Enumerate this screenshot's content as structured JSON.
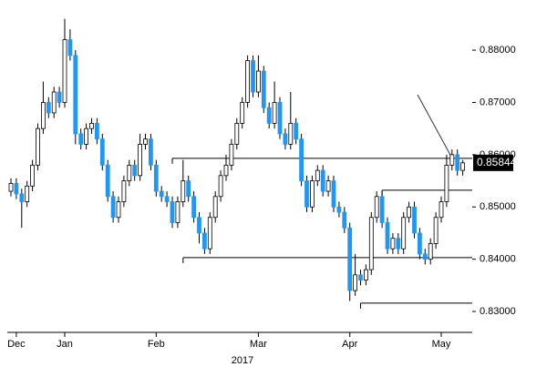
{
  "chart_data": {
    "type": "candlestick",
    "x_label": "2017",
    "categories": [
      null,
      "Dec",
      null,
      null,
      null,
      null,
      null,
      null,
      null,
      null,
      "Jan",
      null,
      null,
      null,
      null,
      null,
      null,
      null,
      null,
      null,
      null,
      null,
      null,
      null,
      null,
      null,
      null,
      "Feb",
      null,
      null,
      null,
      null,
      null,
      null,
      null,
      null,
      null,
      null,
      null,
      null,
      null,
      null,
      null,
      null,
      null,
      null,
      "Mar",
      null,
      null,
      null,
      null,
      null,
      null,
      null,
      null,
      null,
      null,
      null,
      null,
      null,
      null,
      null,
      null,
      "Apr",
      null,
      null,
      null,
      null,
      null,
      null,
      null,
      null,
      null,
      null,
      null,
      null,
      null,
      null,
      null,
      null,
      "May",
      null,
      null,
      null,
      null
    ],
    "open": [
      0.853,
      0.8545,
      0.8525,
      0.851,
      0.854,
      0.858,
      0.865,
      0.87,
      0.868,
      0.872,
      0.87,
      0.882,
      0.879,
      0.864,
      0.862,
      0.865,
      0.866,
      0.863,
      0.858,
      0.852,
      0.848,
      0.851,
      0.855,
      0.858,
      0.856,
      0.862,
      0.863,
      0.858,
      0.853,
      0.852,
      0.851,
      0.847,
      0.851,
      0.855,
      0.852,
      0.848,
      0.845,
      0.842,
      0.848,
      0.852,
      0.856,
      0.858,
      0.862,
      0.866,
      0.87,
      0.878,
      0.872,
      0.876,
      0.869,
      0.866,
      0.87,
      0.864,
      0.862,
      0.866,
      0.863,
      0.855,
      0.85,
      0.855,
      0.857,
      0.853,
      0.855,
      0.85,
      0.849,
      0.846,
      0.834,
      0.837,
      0.836,
      0.838,
      0.848,
      0.852,
      0.847,
      0.842,
      0.844,
      0.842,
      0.848,
      0.85,
      0.845,
      0.841,
      0.84,
      0.843,
      0.848,
      0.851,
      0.858,
      0.86,
      0.857
    ],
    "high": [
      0.8555,
      0.8555,
      0.8535,
      0.855,
      0.859,
      0.866,
      0.874,
      0.871,
      0.873,
      0.873,
      0.886,
      0.884,
      0.88,
      0.865,
      0.866,
      0.867,
      0.867,
      0.864,
      0.859,
      0.853,
      0.852,
      0.856,
      0.859,
      0.859,
      0.864,
      0.864,
      0.864,
      0.859,
      0.854,
      0.853,
      0.852,
      0.852,
      0.859,
      0.856,
      0.853,
      0.849,
      0.846,
      0.849,
      0.853,
      0.857,
      0.86,
      0.863,
      0.867,
      0.871,
      0.879,
      0.879,
      0.879,
      0.877,
      0.87,
      0.874,
      0.871,
      0.865,
      0.872,
      0.867,
      0.864,
      0.856,
      0.856,
      0.858,
      0.858,
      0.856,
      0.856,
      0.851,
      0.85,
      0.847,
      0.841,
      0.838,
      0.839,
      0.849,
      0.853,
      0.853,
      0.848,
      0.845,
      0.845,
      0.849,
      0.851,
      0.851,
      0.846,
      0.842,
      0.844,
      0.849,
      0.852,
      0.86,
      0.861,
      0.861,
      0.859
    ],
    "low": [
      0.852,
      0.8515,
      0.846,
      0.85,
      0.853,
      0.857,
      0.864,
      0.867,
      0.867,
      0.869,
      0.869,
      0.878,
      0.862,
      0.861,
      0.861,
      0.864,
      0.862,
      0.857,
      0.851,
      0.847,
      0.847,
      0.85,
      0.854,
      0.855,
      0.855,
      0.861,
      0.857,
      0.852,
      0.851,
      0.85,
      0.846,
      0.846,
      0.85,
      0.851,
      0.847,
      0.843,
      0.841,
      0.841,
      0.847,
      0.851,
      0.855,
      0.857,
      0.861,
      0.865,
      0.869,
      0.871,
      0.871,
      0.868,
      0.865,
      0.865,
      0.863,
      0.861,
      0.861,
      0.862,
      0.854,
      0.849,
      0.849,
      0.854,
      0.852,
      0.852,
      0.849,
      0.848,
      0.845,
      0.832,
      0.833,
      0.835,
      0.835,
      0.837,
      0.847,
      0.846,
      0.841,
      0.841,
      0.841,
      0.841,
      0.847,
      0.844,
      0.84,
      0.839,
      0.839,
      0.842,
      0.847,
      0.85,
      0.857,
      0.856,
      0.856
    ],
    "close": [
      0.8545,
      0.8525,
      0.851,
      0.854,
      0.858,
      0.865,
      0.87,
      0.868,
      0.872,
      0.87,
      0.882,
      0.879,
      0.864,
      0.862,
      0.865,
      0.866,
      0.863,
      0.858,
      0.852,
      0.848,
      0.851,
      0.855,
      0.858,
      0.856,
      0.862,
      0.863,
      0.858,
      0.853,
      0.852,
      0.851,
      0.847,
      0.851,
      0.855,
      0.852,
      0.848,
      0.845,
      0.842,
      0.848,
      0.852,
      0.856,
      0.858,
      0.862,
      0.866,
      0.87,
      0.878,
      0.872,
      0.876,
      0.869,
      0.866,
      0.87,
      0.864,
      0.862,
      0.866,
      0.863,
      0.855,
      0.85,
      0.855,
      0.857,
      0.853,
      0.855,
      0.85,
      0.849,
      0.846,
      0.834,
      0.837,
      0.836,
      0.838,
      0.848,
      0.852,
      0.847,
      0.842,
      0.844,
      0.842,
      0.848,
      0.85,
      0.845,
      0.841,
      0.84,
      0.843,
      0.848,
      0.851,
      0.858,
      0.86,
      0.857,
      0.85844
    ],
    "up_color": "#ffffff",
    "down_color": "#2196f3",
    "ylim": [
      0.826,
      0.8896
    ],
    "yticks": [
      {
        "value": 0.83,
        "label": "0.83000"
      },
      {
        "value": 0.84,
        "label": "0.84000"
      },
      {
        "value": 0.85,
        "label": "0.85000"
      },
      {
        "value": 0.86,
        "label": "0.86000"
      },
      {
        "value": 0.87,
        "label": "0.87000"
      },
      {
        "value": 0.88,
        "label": "0.88000"
      }
    ],
    "levels": [
      0.8593,
      0.8532,
      0.8403,
      0.8316
    ],
    "last_price": 0.85844
  }
}
